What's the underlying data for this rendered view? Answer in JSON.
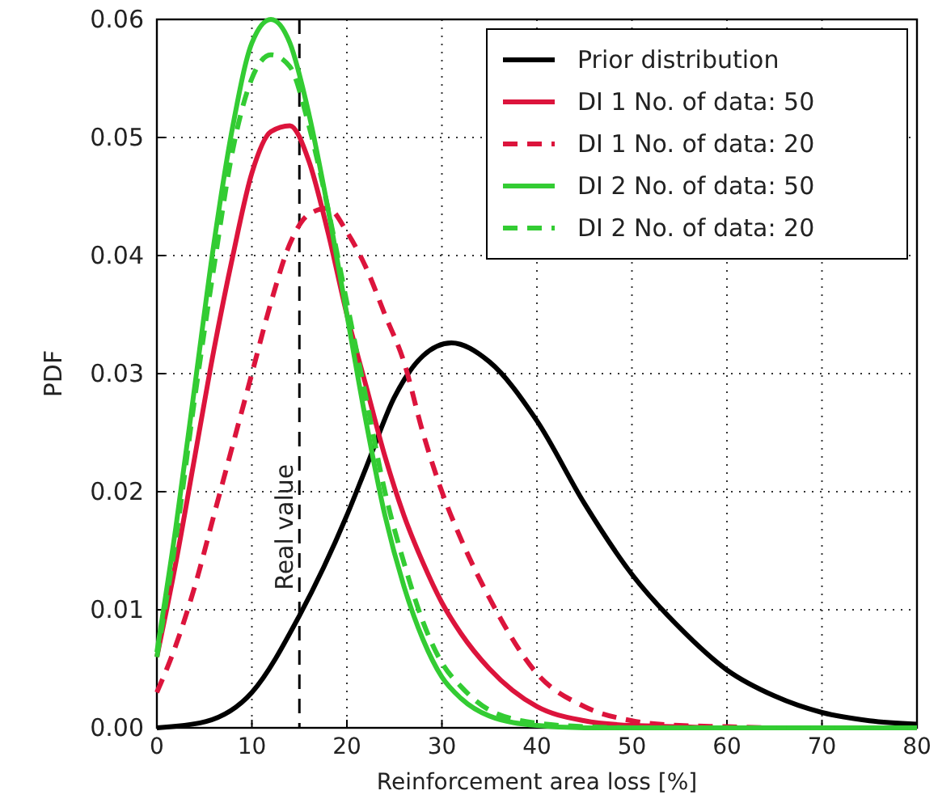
{
  "chart_data": {
    "type": "line",
    "xlabel": "Reinforcement area loss [%]",
    "ylabel": "PDF",
    "xlim": [
      0,
      80
    ],
    "ylim": [
      0,
      0.06
    ],
    "xticks": [
      0,
      10,
      20,
      30,
      40,
      50,
      60,
      70,
      80
    ],
    "yticks": [
      {
        "value": 0,
        "label": "0.00"
      },
      {
        "value": 0.01,
        "label": "0.01"
      },
      {
        "value": 0.02,
        "label": "0.02"
      },
      {
        "value": 0.03,
        "label": "0.03"
      },
      {
        "value": 0.04,
        "label": "0.04"
      },
      {
        "value": 0.05,
        "label": "0.05"
      },
      {
        "value": 0.06,
        "label": "0.06"
      }
    ],
    "grid": true,
    "legend": "top right",
    "marker": "none",
    "ref_lines": [
      {
        "axis": "x",
        "value": 15,
        "label": "Real value",
        "color": "#000000",
        "line_style": "dashed"
      }
    ],
    "series": [
      {
        "name": "Prior distribution",
        "color": "#000000",
        "line_style": "solid",
        "x": [
          0,
          5,
          10,
          15,
          20,
          22,
          25,
          28,
          31,
          35,
          40,
          45,
          50,
          55,
          60,
          65,
          70,
          75,
          80
        ],
        "values": [
          0,
          0.0005,
          0.003,
          0.0095,
          0.018,
          0.022,
          0.028,
          0.0315,
          0.0326,
          0.031,
          0.026,
          0.019,
          0.013,
          0.0085,
          0.0049,
          0.0027,
          0.0013,
          0.0006,
          0.0003
        ]
      },
      {
        "name": "DI 1 No. of data: 50",
        "color": "#dc143c",
        "line_style": "solid",
        "x": [
          0,
          2,
          4,
          6,
          8,
          10,
          12,
          14,
          16,
          18,
          20,
          22,
          24,
          26,
          28,
          30,
          32,
          35,
          40,
          45,
          50,
          55,
          60,
          70,
          80
        ],
        "values": [
          0.006,
          0.014,
          0.023,
          0.032,
          0.04,
          0.047,
          0.0505,
          0.051,
          0.048,
          0.042,
          0.035,
          0.029,
          0.023,
          0.018,
          0.014,
          0.0106,
          0.008,
          0.005,
          0.0018,
          0.0006,
          0.0002,
          0.0001,
          0,
          0,
          0
        ]
      },
      {
        "name": "DI 1 No. of data: 20",
        "color": "#dc143c",
        "line_style": "dashed",
        "x": [
          0,
          2,
          4,
          6,
          8,
          10,
          12,
          14,
          16,
          18,
          20,
          22,
          24,
          26,
          28,
          30,
          32,
          35,
          40,
          45,
          50,
          55,
          60,
          65,
          70,
          80
        ],
        "values": [
          0.003,
          0.007,
          0.012,
          0.018,
          0.024,
          0.03,
          0.036,
          0.041,
          0.0435,
          0.044,
          0.042,
          0.039,
          0.035,
          0.031,
          0.025,
          0.02,
          0.016,
          0.011,
          0.0046,
          0.0018,
          0.0006,
          0.0002,
          0.0001,
          0,
          0,
          0
        ]
      },
      {
        "name": "DI 2 No. of data: 50",
        "color": "#33cc33",
        "line_style": "solid",
        "x": [
          0,
          2,
          4,
          6,
          8,
          10,
          12,
          14,
          16,
          18,
          20,
          22,
          24,
          26,
          28,
          30,
          32,
          35,
          40,
          45,
          50,
          60,
          70,
          80
        ],
        "values": [
          0.0064,
          0.017,
          0.029,
          0.041,
          0.051,
          0.058,
          0.06,
          0.058,
          0.052,
          0.044,
          0.035,
          0.026,
          0.018,
          0.012,
          0.0075,
          0.0043,
          0.0025,
          0.001,
          0.0002,
          0,
          0,
          0,
          0,
          0
        ]
      },
      {
        "name": "DI 2 No. of data: 20",
        "color": "#33cc33",
        "line_style": "dashed",
        "x": [
          0,
          2,
          4,
          6,
          8,
          10,
          12,
          14,
          16,
          18,
          20,
          22,
          24,
          26,
          28,
          30,
          32,
          35,
          40,
          45,
          50,
          60,
          70,
          80
        ],
        "values": [
          0.006,
          0.016,
          0.028,
          0.039,
          0.049,
          0.055,
          0.057,
          0.056,
          0.051,
          0.044,
          0.036,
          0.028,
          0.02,
          0.014,
          0.009,
          0.0055,
          0.0035,
          0.0015,
          0.0004,
          0.0001,
          0,
          0,
          0,
          0
        ]
      }
    ]
  }
}
